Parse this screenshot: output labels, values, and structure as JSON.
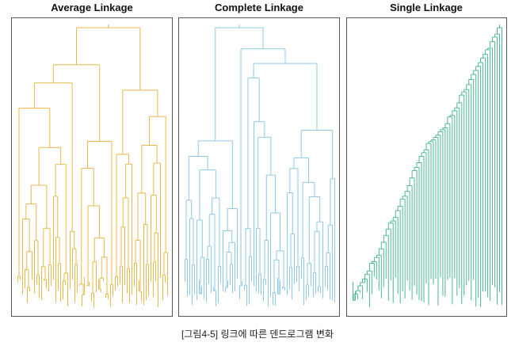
{
  "caption": "[그림4-5] 링크에 따른 덴드로그램 변화",
  "chart_data": [
    {
      "type": "dendrogram",
      "title": "Average Linkage",
      "color": "#E8B84A",
      "n_leaves": 64,
      "grid": false
    },
    {
      "type": "dendrogram",
      "title": "Complete Linkage",
      "color": "#8EC9E6",
      "n_leaves": 64,
      "grid": false
    },
    {
      "type": "dendrogram",
      "title": "Single Linkage",
      "color": "#4CB894",
      "n_leaves": 64,
      "grid": false
    }
  ]
}
